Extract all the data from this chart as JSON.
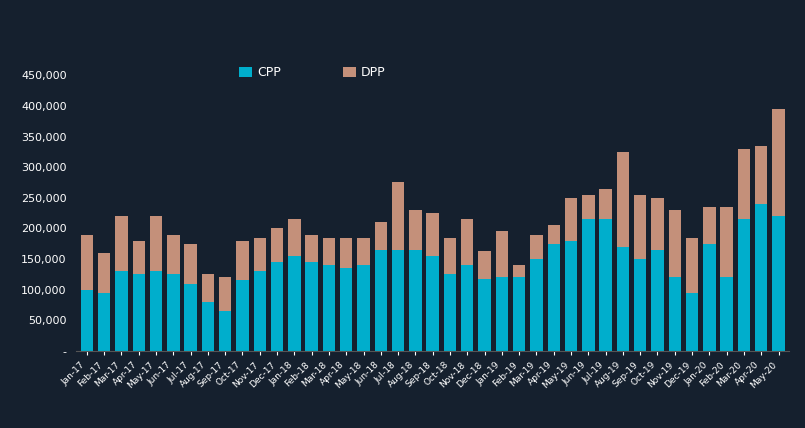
{
  "categories": [
    "Jan-17",
    "Feb-17",
    "Mar-17",
    "Apr-17",
    "May-17",
    "Jun-17",
    "Jul-17",
    "Aug-17",
    "Sep-17",
    "Oct-17",
    "Nov-17",
    "Dec-17",
    "Jan-18",
    "Feb-18",
    "Mar-18",
    "Apr-18",
    "May-18",
    "Jun-18",
    "Jul-18",
    "Aug-18",
    "Sep-18",
    "Oct-18",
    "Nov-18",
    "Dec-18",
    "Jan-19",
    "Feb-19",
    "Mar-19",
    "Apr-19",
    "May-19",
    "Jun-19",
    "Jul-19",
    "Aug-19",
    "Sep-19",
    "Oct-19",
    "Nov-19",
    "Dec-19",
    "Jan-20",
    "Feb-20",
    "Mar-20",
    "Apr-20",
    "May-20"
  ],
  "cpp": [
    100000,
    95000,
    130000,
    125000,
    130000,
    125000,
    110000,
    80000,
    65000,
    115000,
    130000,
    145000,
    155000,
    145000,
    140000,
    135000,
    140000,
    165000,
    165000,
    165000,
    155000,
    125000,
    140000,
    118000,
    120000,
    120000,
    150000,
    175000,
    180000,
    215000,
    215000,
    170000,
    150000,
    165000,
    120000,
    95000,
    175000,
    120000,
    215000,
    240000,
    220000
  ],
  "dpp": [
    90000,
    65000,
    90000,
    55000,
    90000,
    65000,
    65000,
    45000,
    55000,
    65000,
    55000,
    55000,
    60000,
    45000,
    45000,
    50000,
    45000,
    45000,
    110000,
    65000,
    70000,
    60000,
    75000,
    45000,
    75000,
    20000,
    40000,
    30000,
    70000,
    40000,
    50000,
    155000,
    105000,
    85000,
    110000,
    90000,
    60000,
    115000,
    115000,
    95000,
    175000
  ],
  "cpp_color": "#00AECC",
  "dpp_color": "#C4907A",
  "bg_color": "#15202E",
  "text_color": "#ffffff",
  "grid_color": "#243045",
  "ylim": [
    0,
    475000
  ],
  "yticks": [
    0,
    50000,
    100000,
    150000,
    200000,
    250000,
    300000,
    350000,
    400000,
    450000
  ]
}
